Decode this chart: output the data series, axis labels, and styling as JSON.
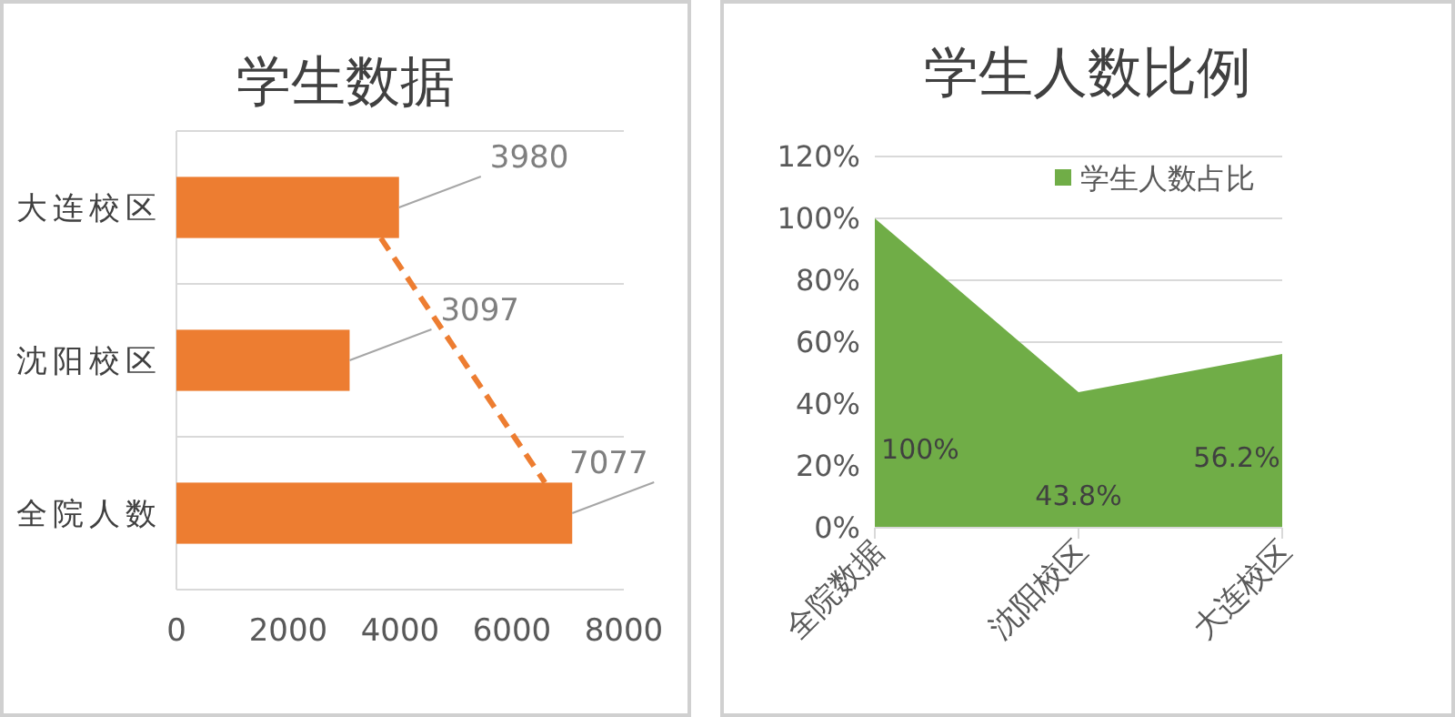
{
  "chart_data": [
    {
      "type": "bar",
      "title": "学生数据",
      "orientation": "horizontal",
      "categories": [
        "大连校区",
        "沈阳校区",
        "全院人数"
      ],
      "values": [
        3980,
        3097,
        7077
      ],
      "color": "#ed7d31",
      "xlim": [
        0,
        8000
      ],
      "xticks": [
        0,
        2000,
        4000,
        6000,
        8000
      ],
      "grid": "y",
      "data_labels": true
    },
    {
      "type": "area",
      "title": "学生人数比例",
      "categories": [
        "全院数据",
        "沈阳校区",
        "大连校区"
      ],
      "series": [
        {
          "name": "学生人数占比",
          "color": "#70ad47",
          "values": [
            100,
            43.8,
            56.2
          ]
        }
      ],
      "value_labels": [
        "100%",
        "43.8%",
        "56.2%"
      ],
      "ylim": [
        0,
        120
      ],
      "yticks": [
        {
          "value": 0,
          "label": "0%"
        },
        {
          "value": 20,
          "label": "20%"
        },
        {
          "value": 40,
          "label": "40%"
        },
        {
          "value": 60,
          "label": "60%"
        },
        {
          "value": 80,
          "label": "80%"
        },
        {
          "value": 100,
          "label": "100%"
        },
        {
          "value": 120,
          "label": "120%"
        }
      ],
      "grid": "y",
      "legend": "top right"
    }
  ]
}
